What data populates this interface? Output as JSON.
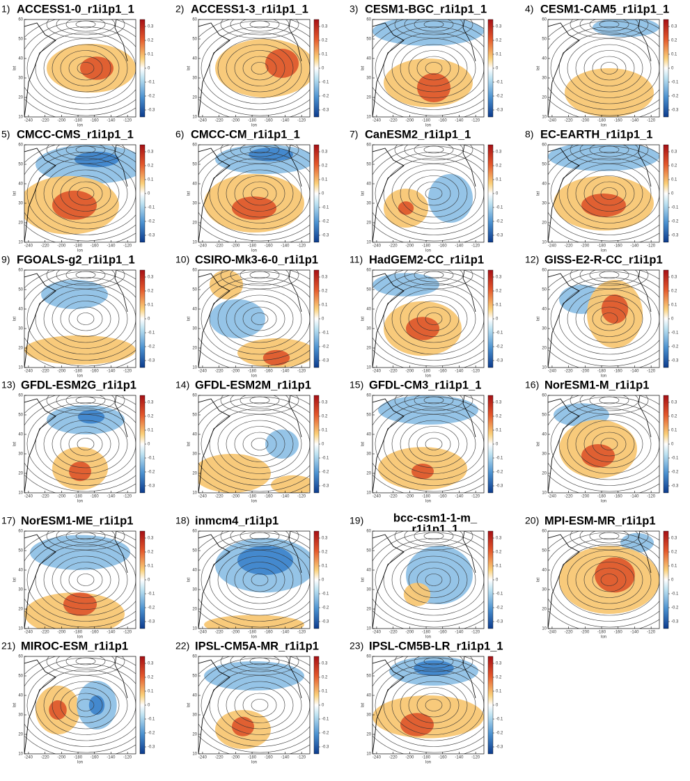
{
  "axes": {
    "xlabel": "lon",
    "ylabel": "lat",
    "xlim": [
      -245,
      -110
    ],
    "xticks": [
      -240,
      -220,
      -200,
      -180,
      -160,
      -140,
      -120
    ],
    "ylim": [
      10,
      60
    ],
    "yticks": [
      10,
      20,
      30,
      40,
      50,
      60
    ],
    "colorbar_lim": [
      -0.35,
      0.35
    ],
    "colorbar_ticks": [
      0.3,
      0.2,
      0.1,
      0,
      -0.1,
      -0.2,
      -0.3
    ]
  },
  "panels": [
    {
      "label": "1)",
      "title": "ACCESS1-0_r1i1p1_1"
    },
    {
      "label": "2)",
      "title": "ACCESS1-3_r1i1p1_1"
    },
    {
      "label": "3)",
      "title": "CESM1-BGC_r1i1p1_1"
    },
    {
      "label": "4)",
      "title": "CESM1-CAM5_r1i1p1_1"
    },
    {
      "label": "5)",
      "title": "CMCC-CMS_r1i1p1_1"
    },
    {
      "label": "6)",
      "title": "CMCC-CM_r1i1p1_1"
    },
    {
      "label": "7)",
      "title": "CanESM2_r1i1p1_1"
    },
    {
      "label": "8)",
      "title": "EC-EARTH_r1i1p1_1"
    },
    {
      "label": "9)",
      "title": "FGOALS-g2_r1i1p1_1"
    },
    {
      "label": "10)",
      "title": "CSIRO-Mk3-6-0_r1i1p1"
    },
    {
      "label": "11)",
      "title": "HadGEM2-CC_r1i1p1"
    },
    {
      "label": "12)",
      "title": "GISS-E2-R-CC_r1i1p1"
    },
    {
      "label": "13)",
      "title": "GFDL-ESM2G_r1i1p1"
    },
    {
      "label": "14)",
      "title": "GFDL-ESM2M_r1i1p1"
    },
    {
      "label": "15)",
      "title": "GFDL-CM3_r1i1p1_1"
    },
    {
      "label": "16)",
      "title": "NorESM1-M_r1i1p1"
    },
    {
      "label": "17)",
      "title": "NorESM1-ME_r1i1p1"
    },
    {
      "label": "18)",
      "title": "inmcm4_r1i1p1"
    },
    {
      "label": "19)",
      "title": [
        "bcc-csm1-1-m_",
        "r1i1p1_1"
      ]
    },
    {
      "label": "20)",
      "title": "MPI-ESM-MR_r1i1p1"
    },
    {
      "label": "21)",
      "title": "MIROC-ESM_r1i1p1"
    },
    {
      "label": "22)",
      "title": "IPSL-CM5A-MR_r1i1p1"
    },
    {
      "label": "23)",
      "title": "IPSL-CM5B-LR_r1i1p1_1"
    }
  ]
}
